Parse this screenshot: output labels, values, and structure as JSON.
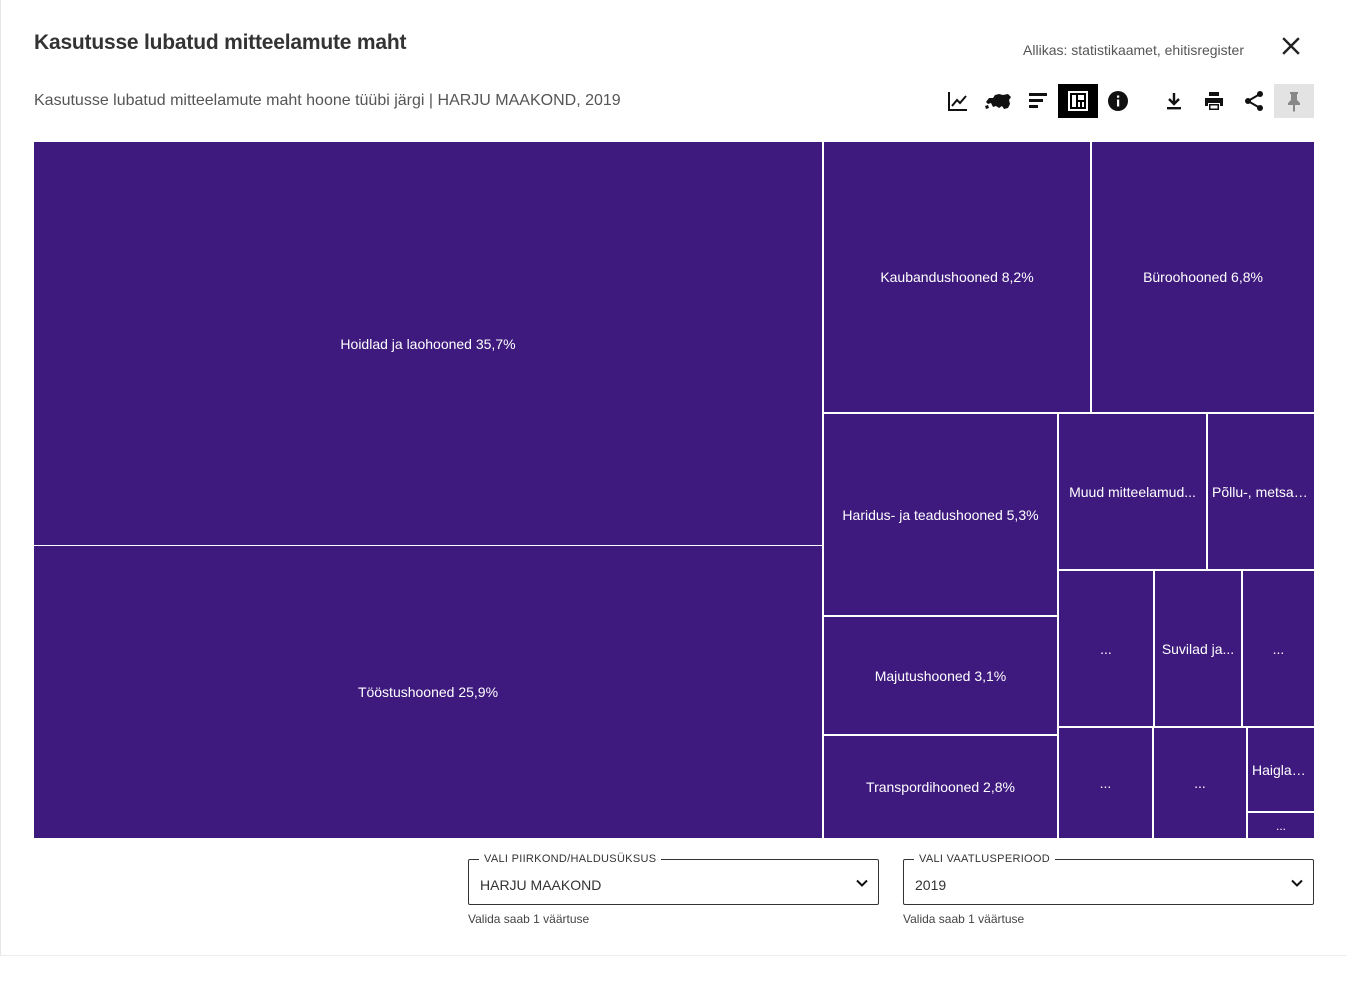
{
  "header": {
    "title": "Kasutusse lubatud mitteelamute maht",
    "source": "Allikas: statistikaamet, ehitisregister",
    "subtitle": "Kasutusse lubatud mitteelamute maht hoone tüübi järgi | HARJU MAAKOND, 2019"
  },
  "toolbar": {
    "items": [
      {
        "icon": "line-chart-icon",
        "active": false
      },
      {
        "icon": "estonia-map-icon",
        "active": false
      },
      {
        "icon": "bar-chart-icon",
        "active": false
      },
      {
        "icon": "treemap-icon",
        "active": true
      },
      {
        "icon": "info-icon",
        "active": false
      },
      {
        "icon": "download-icon",
        "active": false
      },
      {
        "icon": "print-icon",
        "active": false
      },
      {
        "icon": "share-icon",
        "active": false
      },
      {
        "icon": "pin-icon",
        "active": false,
        "pinned": true
      }
    ]
  },
  "colors": {
    "tile": "#3e1a7e",
    "active_tool": "#000000",
    "pinned_tool": "#e3e3e3"
  },
  "chart_data": {
    "type": "treemap",
    "tiles": [
      {
        "label": "Hoidlad ja laohooned 35,7%",
        "value": 35.7
      },
      {
        "label": "Tööstushooned 25,9%",
        "value": 25.9
      },
      {
        "label": "Kaubandushooned 8,2%",
        "value": 8.2
      },
      {
        "label": "Büroohooned 6,8%",
        "value": 6.8
      },
      {
        "label": "Haridus- ja teadushooned 5,3%",
        "value": 5.3
      },
      {
        "label": "Muud mitteelamud...",
        "value": null
      },
      {
        "label": "Põllu-, metsa-,...",
        "value": null
      },
      {
        "label": "Majutushooned 3,1%",
        "value": 3.1
      },
      {
        "label": "...",
        "value": null
      },
      {
        "label": "Suvilad ja...",
        "value": null
      },
      {
        "label": "...",
        "value": null
      },
      {
        "label": "Transpordihooned 2,8%",
        "value": 2.8
      },
      {
        "label": "...",
        "value": null
      },
      {
        "label": "...",
        "value": null
      },
      {
        "label": "Haiglad...",
        "value": null
      },
      {
        "label": "...",
        "value": null
      }
    ]
  },
  "filters": {
    "region": {
      "label": "VALI PIIRKOND/HALDUSÜKSUS",
      "value": "HARJU MAAKOND",
      "helper": "Valida saab 1 väärtuse"
    },
    "period": {
      "label": "VALI VAATLUSPERIOOD",
      "value": "2019",
      "helper": "Valida saab 1 väärtuse"
    }
  }
}
